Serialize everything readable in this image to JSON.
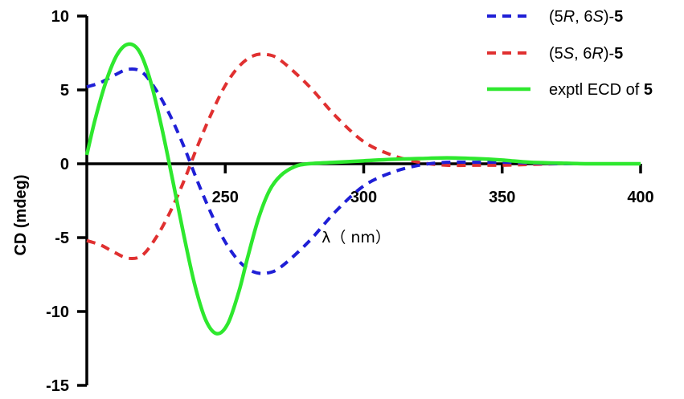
{
  "chart_data": {
    "type": "line",
    "xlabel": "λ（ nm）",
    "ylabel": "CD (mdeg)",
    "xlim": [
      200,
      400
    ],
    "ylim": [
      -15,
      10
    ],
    "x_ticks": [
      250,
      300,
      350,
      400
    ],
    "x_tick_labels": [
      "250",
      "300",
      "350",
      "400"
    ],
    "y_ticks": [
      10,
      5,
      0,
      -5,
      -10,
      -15
    ],
    "y_tick_labels": [
      "10",
      "5",
      "0",
      "-5",
      "-10",
      "-15"
    ],
    "grid": false,
    "legend_position": "top-right",
    "series": [
      {
        "name_parts": [
          [
            "(5",
            "normal",
            "normal"
          ],
          [
            "R",
            "italic",
            "normal"
          ],
          [
            ", 6",
            "normal",
            "normal"
          ],
          [
            "S",
            "italic",
            "normal"
          ],
          [
            ")-",
            "normal",
            "normal"
          ],
          [
            "5",
            "normal",
            "bold"
          ]
        ],
        "color": "#1f1fd6",
        "style": "dashed",
        "x": [
          200,
          205,
          210,
          215,
          220,
          225,
          230,
          235,
          240,
          245,
          250,
          255,
          260,
          265,
          270,
          280,
          290,
          300,
          310,
          320,
          330,
          340,
          350,
          360,
          370,
          380,
          390,
          400
        ],
        "y": [
          5.2,
          5.5,
          6.0,
          6.4,
          6.2,
          5.0,
          3.3,
          1.2,
          -1.2,
          -3.4,
          -5.3,
          -6.6,
          -7.3,
          -7.4,
          -7.0,
          -5.3,
          -3.2,
          -1.5,
          -0.6,
          -0.1,
          0.1,
          0.1,
          0.1,
          0.05,
          0.0,
          0.0,
          0.0,
          0.0
        ]
      },
      {
        "name_parts": [
          [
            "(5",
            "normal",
            "normal"
          ],
          [
            "S",
            "italic",
            "normal"
          ],
          [
            ", 6",
            "normal",
            "normal"
          ],
          [
            "R",
            "italic",
            "normal"
          ],
          [
            ")-",
            "normal",
            "normal"
          ],
          [
            "5",
            "normal",
            "bold"
          ]
        ],
        "color": "#e03030",
        "style": "dashed",
        "x": [
          200,
          205,
          210,
          215,
          220,
          225,
          230,
          235,
          240,
          245,
          250,
          255,
          260,
          265,
          270,
          280,
          290,
          300,
          310,
          320,
          330,
          340,
          350,
          360,
          370,
          380,
          390,
          400
        ],
        "y": [
          -5.2,
          -5.5,
          -6.0,
          -6.4,
          -6.2,
          -5.0,
          -3.3,
          -1.2,
          1.2,
          3.4,
          5.3,
          6.6,
          7.3,
          7.4,
          7.0,
          5.3,
          3.2,
          1.5,
          0.6,
          0.1,
          -0.1,
          -0.1,
          -0.1,
          -0.05,
          0.0,
          0.0,
          0.0,
          0.0
        ]
      },
      {
        "name_parts": [
          [
            "exptl ECD of ",
            "normal",
            "normal"
          ],
          [
            "5",
            "normal",
            "bold"
          ]
        ],
        "color": "#2ee82e",
        "style": "solid",
        "x": [
          200,
          203,
          207,
          211,
          215,
          219,
          223,
          227,
          231,
          235,
          239,
          243,
          247,
          251,
          255,
          258,
          262,
          266,
          270,
          275,
          280,
          290,
          300,
          310,
          320,
          330,
          340,
          350,
          360,
          370,
          380,
          390,
          400
        ],
        "y": [
          0.6,
          3.0,
          5.6,
          7.4,
          8.1,
          7.6,
          5.6,
          2.5,
          -1.1,
          -4.8,
          -8.2,
          -10.6,
          -11.5,
          -10.8,
          -8.6,
          -6.4,
          -3.7,
          -1.8,
          -0.8,
          -0.2,
          0.0,
          0.1,
          0.2,
          0.3,
          0.35,
          0.4,
          0.35,
          0.25,
          0.1,
          0.05,
          0.0,
          0.0,
          0.0
        ]
      }
    ]
  }
}
